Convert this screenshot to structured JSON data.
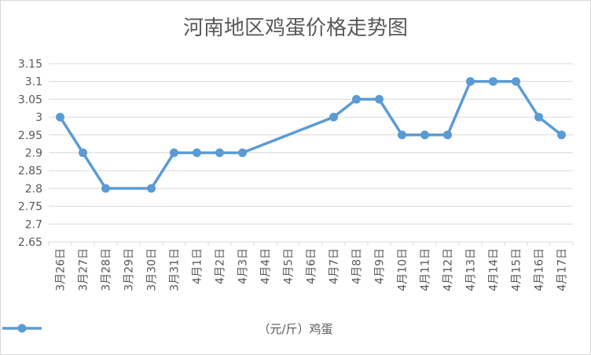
{
  "chart_data": {
    "type": "line",
    "title": "河南地区鸡蛋价格走势图",
    "categories": [
      "3月26日",
      "3月27日",
      "3月28日",
      "3月29日",
      "3月30日",
      "3月31日",
      "4月1日",
      "4月2日",
      "4月3日",
      "4月4日",
      "4月5日",
      "4月6日",
      "4月7日",
      "4月8日",
      "4月9日",
      "4月10日",
      "4月11日",
      "4月12日",
      "4月13日",
      "4月14日",
      "4月15日",
      "4月16日",
      "4月17日"
    ],
    "series": [
      {
        "name": "（元/斤）鸡蛋",
        "values": [
          3,
          2.9,
          2.8,
          null,
          2.8,
          2.9,
          2.9,
          2.9,
          2.9,
          null,
          null,
          null,
          3,
          3.05,
          3.05,
          2.95,
          2.95,
          2.95,
          3.1,
          3.1,
          3.1,
          3,
          2.95
        ],
        "color": "#5b9bd5",
        "connect_gaps": true
      }
    ],
    "y_ticks": [
      "2.65",
      "2.7",
      "2.75",
      "2.8",
      "2.85",
      "2.9",
      "2.95",
      "3",
      "3.05",
      "3.1",
      "3.15"
    ],
    "ylim": [
      2.65,
      3.15
    ],
    "grid": true,
    "legend_position": "bottom",
    "colors": {
      "grid": "#d9d9d9",
      "axis_text": "#595959"
    }
  }
}
